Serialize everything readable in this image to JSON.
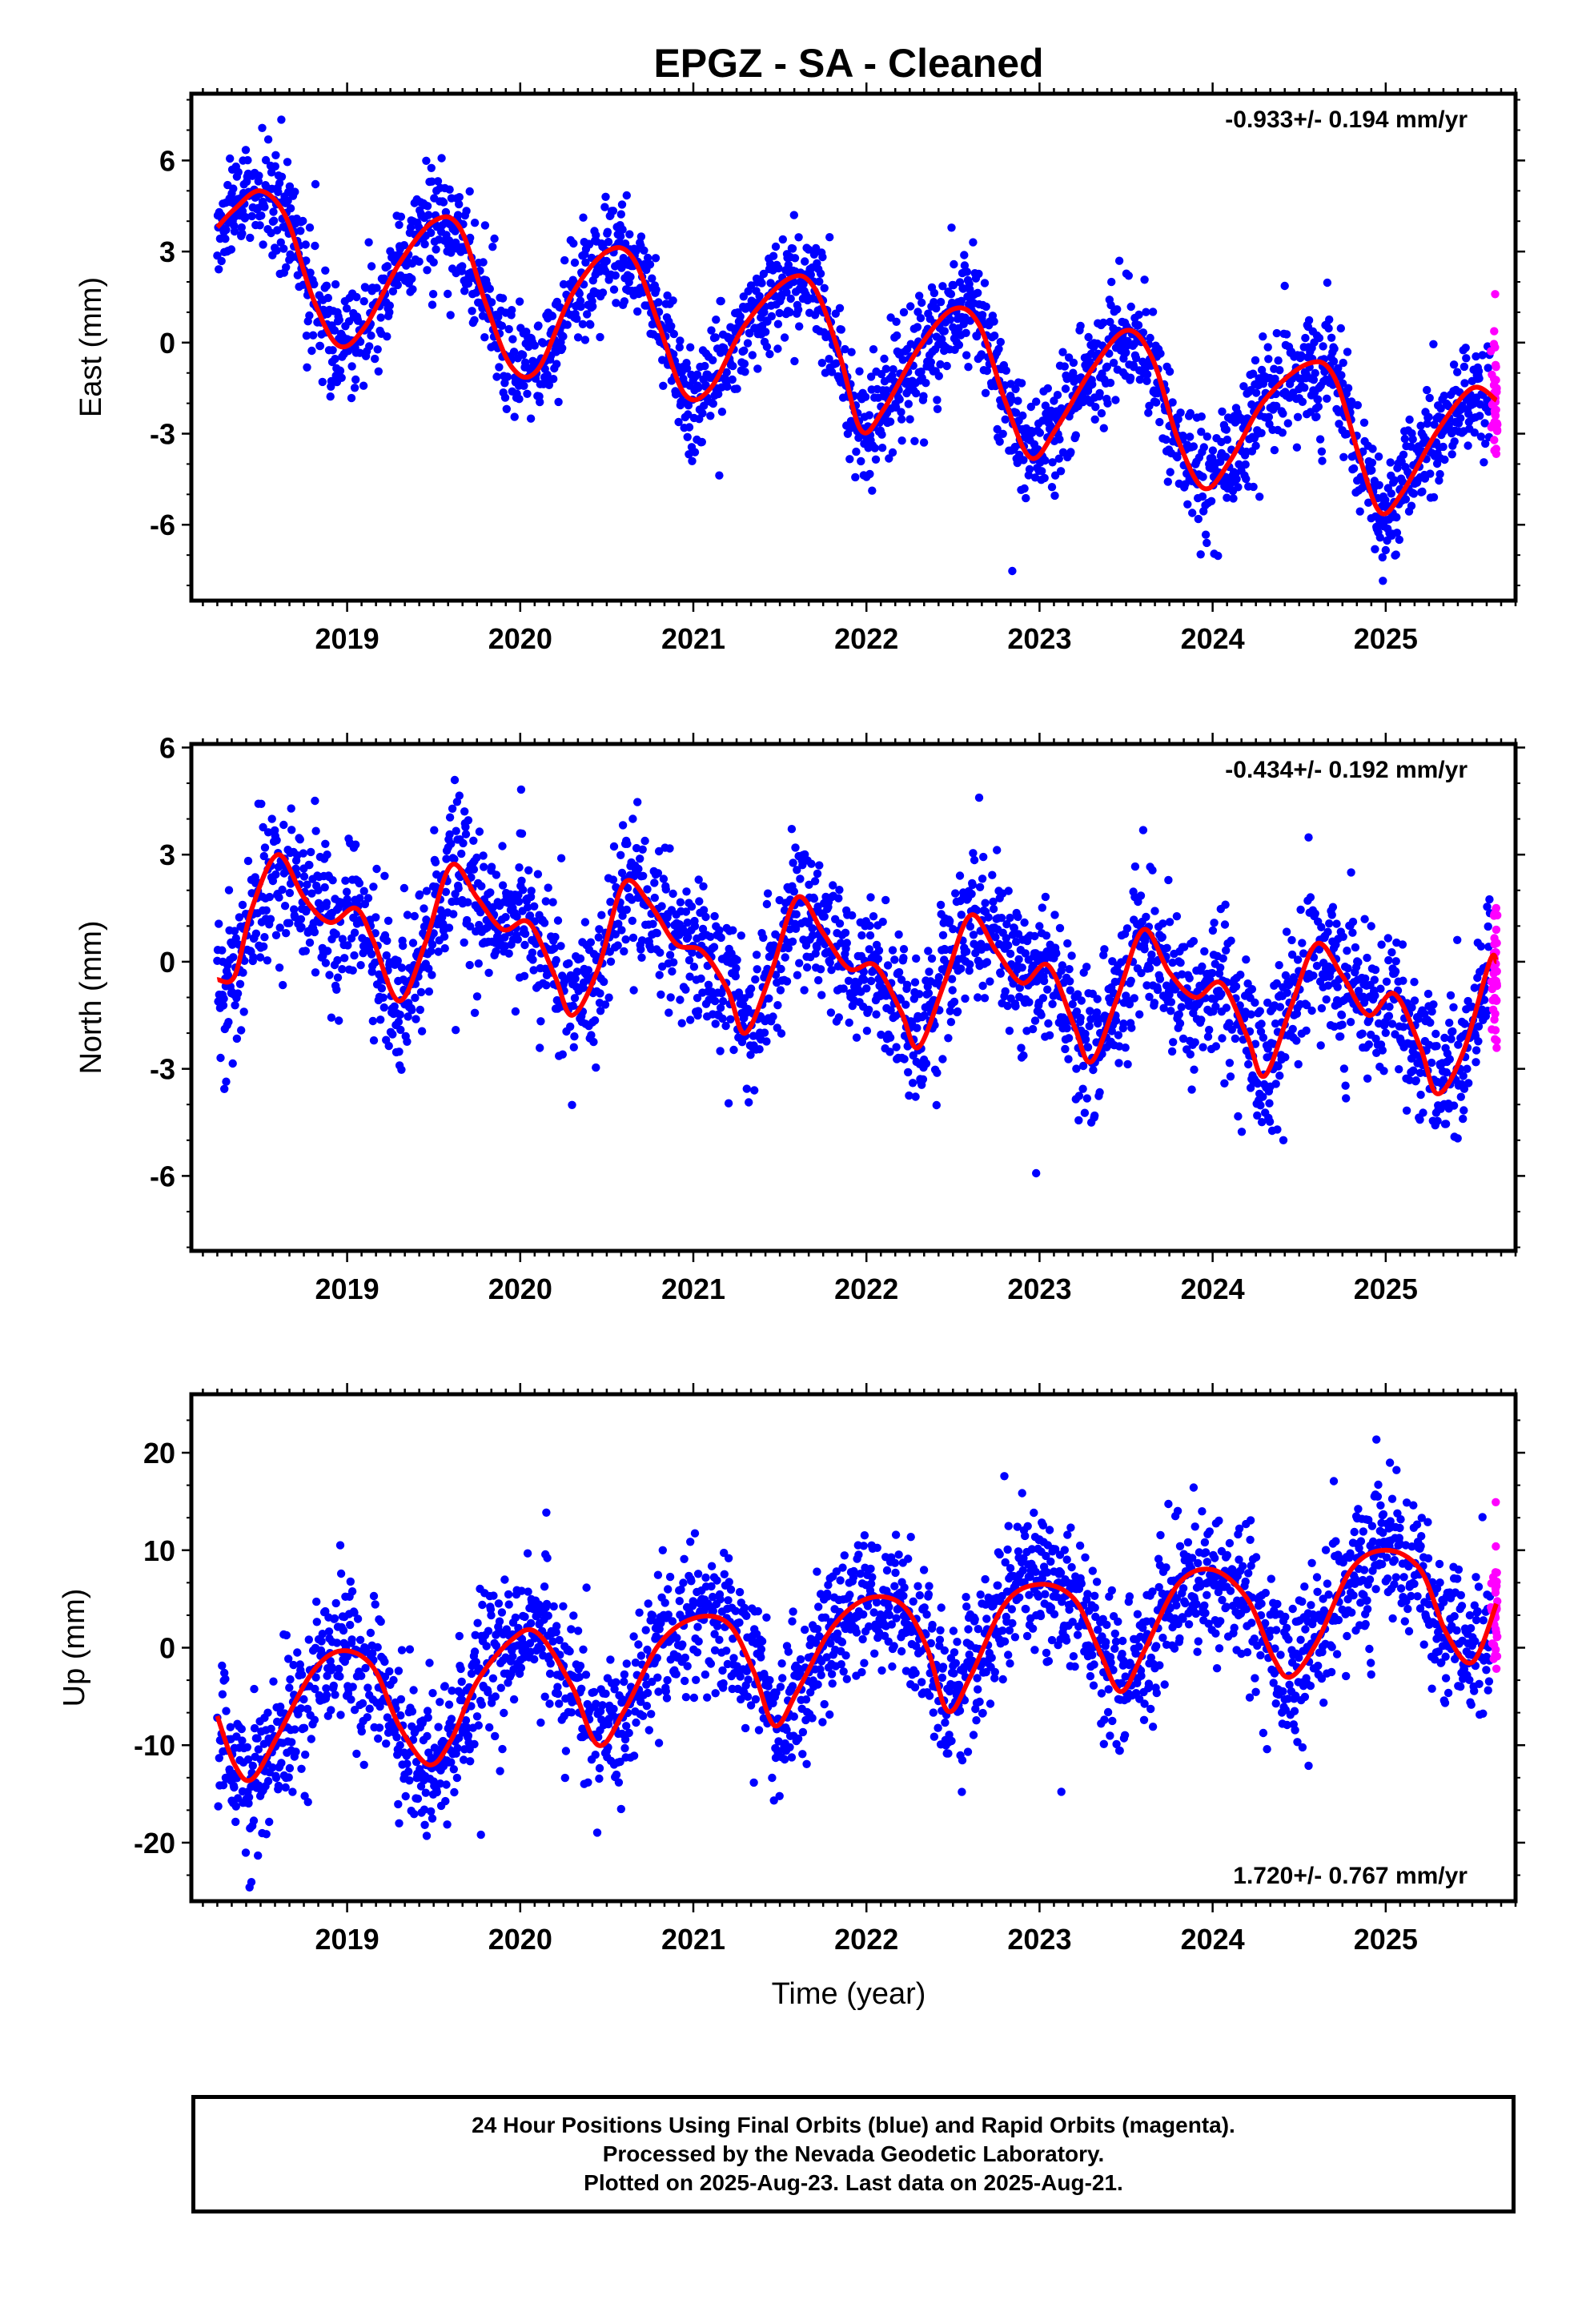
{
  "title": "EPGZ  - SA - Cleaned",
  "xlabel": "Time (year)",
  "colors": {
    "final": "#0000ff",
    "rapid": "#ff00ff",
    "model": "#ff0000",
    "axis": "#000000"
  },
  "footer": {
    "line1": "24 Hour Positions Using Final Orbits (blue) and Rapid Orbits (magenta).",
    "line2": "Processed by the Nevada Geodetic Laboratory.",
    "line3": "Plotted on 2025-Aug-23. Last data on 2025-Aug-21."
  },
  "chart_data": [
    {
      "type": "scatter",
      "component": "east",
      "ylabel": "East (mm)",
      "rate_label": "-0.933+/- 0.194 mm/yr",
      "xlim": [
        2018.1,
        2025.75
      ],
      "ylim": [
        -8.5,
        8.2
      ],
      "xticks": [
        2019,
        2020,
        2021,
        2022,
        2023,
        2024,
        2025
      ],
      "yticks": [
        6,
        3,
        0,
        -3,
        -6
      ],
      "ytick_labels": [
        "6",
        "3",
        "0",
        "-3",
        "-6"
      ],
      "x_start": 2018.25,
      "x_rapid_start": 2025.55,
      "x_end": 2025.64,
      "fit": {
        "x": [
          2018.25,
          2018.35,
          2018.5,
          2018.65,
          2018.8,
          2018.95,
          2019.1,
          2019.3,
          2019.5,
          2019.65,
          2019.8,
          2019.95,
          2020.1,
          2020.3,
          2020.5,
          2020.65,
          2020.8,
          2020.95,
          2021.1,
          2021.3,
          2021.55,
          2021.7,
          2021.85,
          2021.97,
          2022.1,
          2022.3,
          2022.5,
          2022.65,
          2022.8,
          2022.95,
          2023.1,
          2023.3,
          2023.5,
          2023.65,
          2023.8,
          2023.95,
          2024.1,
          2024.3,
          2024.55,
          2024.7,
          2024.85,
          2024.97,
          2025.1,
          2025.3,
          2025.5,
          2025.64
        ],
        "y": [
          3.8,
          4.4,
          5.0,
          4.1,
          1.5,
          -0.1,
          0.5,
          2.6,
          4.0,
          3.8,
          1.3,
          -0.8,
          -0.9,
          1.6,
          3.0,
          2.8,
          0.6,
          -1.7,
          -1.5,
          0.6,
          2.1,
          1.8,
          -0.5,
          -2.9,
          -2.2,
          -0.2,
          1.1,
          0.6,
          -1.9,
          -3.8,
          -2.8,
          -0.9,
          0.4,
          -0.5,
          -3.2,
          -4.8,
          -3.9,
          -1.9,
          -0.7,
          -1.1,
          -3.8,
          -5.6,
          -4.9,
          -2.9,
          -1.5,
          -1.9
        ]
      },
      "season": {
        "amp": 2.2,
        "phase": 0.55,
        "amp2": 0.0,
        "trend": -0.933,
        "offset": 4.3,
        "noise": 1.0
      }
    },
    {
      "type": "scatter",
      "component": "north",
      "ylabel": "North (mm)",
      "rate_label": "-0.434+/- 0.192 mm/yr",
      "xlim": [
        2018.1,
        2025.75
      ],
      "ylim": [
        -8.1,
        6.1
      ],
      "xticks": [
        2019,
        2020,
        2021,
        2022,
        2023,
        2024,
        2025
      ],
      "yticks": [
        6,
        3,
        0,
        -3,
        -6
      ],
      "ytick_labels": [
        "6",
        "3",
        "0",
        "-3",
        "-6"
      ],
      "x_start": 2018.25,
      "x_rapid_start": 2025.55,
      "x_end": 2025.64,
      "fit": {
        "x": [
          2018.25,
          2018.35,
          2018.45,
          2018.6,
          2018.75,
          2018.9,
          2019.05,
          2019.15,
          2019.3,
          2019.45,
          2019.6,
          2019.75,
          2019.9,
          2020.05,
          2020.2,
          2020.3,
          2020.45,
          2020.6,
          2020.75,
          2020.9,
          2021.05,
          2021.2,
          2021.3,
          2021.45,
          2021.6,
          2021.75,
          2021.9,
          2022.05,
          2022.2,
          2022.3,
          2022.45,
          2022.6,
          2022.75,
          2022.9,
          2023.05,
          2023.2,
          2023.3,
          2023.45,
          2023.6,
          2023.75,
          2023.9,
          2024.05,
          2024.2,
          2024.3,
          2024.45,
          2024.6,
          2024.75,
          2024.9,
          2025.05,
          2025.2,
          2025.3,
          2025.45,
          2025.6,
          2025.64
        ],
        "y": [
          -0.5,
          -0.4,
          1.5,
          3.0,
          1.8,
          1.1,
          1.5,
          0.6,
          -1.1,
          0.5,
          2.7,
          1.8,
          0.9,
          1.1,
          -0.4,
          -1.5,
          -0.2,
          2.2,
          1.6,
          0.5,
          0.3,
          -0.8,
          -2.0,
          -0.3,
          1.8,
          0.8,
          -0.2,
          -0.1,
          -1.4,
          -2.4,
          -0.6,
          1.3,
          0.3,
          -0.6,
          -0.1,
          -1.8,
          -2.8,
          -1.0,
          0.9,
          -0.3,
          -1.0,
          -0.6,
          -2.1,
          -3.2,
          -1.3,
          0.5,
          -0.4,
          -1.5,
          -0.9,
          -2.4,
          -3.7,
          -2.5,
          0.0,
          0.0
        ]
      },
      "season": {
        "amp": 1.4,
        "phase": 0.38,
        "amp2": 0.9,
        "trend": -0.434,
        "offset": 1.0,
        "noise": 1.1
      }
    },
    {
      "type": "scatter",
      "component": "up",
      "ylabel": "Up (mm)",
      "rate_label": "1.720+/- 0.767 mm/yr",
      "xlim": [
        2018.1,
        2025.75
      ],
      "ylim": [
        -26,
        26
      ],
      "xticks": [
        2019,
        2020,
        2021,
        2022,
        2023,
        2024,
        2025
      ],
      "yticks": [
        20,
        10,
        0,
        -10,
        -20
      ],
      "ytick_labels": [
        "20",
        "10",
        "0",
        "-10",
        "-20"
      ],
      "x_start": 2018.25,
      "x_rapid_start": 2025.55,
      "x_end": 2025.64,
      "fit": {
        "x": [
          2018.25,
          2018.35,
          2018.45,
          2018.6,
          2018.8,
          2018.97,
          2019.15,
          2019.3,
          2019.47,
          2019.6,
          2019.75,
          2019.95,
          2020.1,
          2020.3,
          2020.45,
          2020.6,
          2020.8,
          2021.0,
          2021.2,
          2021.35,
          2021.47,
          2021.6,
          2021.8,
          2022.0,
          2022.2,
          2022.35,
          2022.47,
          2022.6,
          2022.8,
          2023.0,
          2023.2,
          2023.35,
          2023.47,
          2023.6,
          2023.8,
          2024.0,
          2024.2,
          2024.35,
          2024.45,
          2024.6,
          2024.8,
          2025.0,
          2025.2,
          2025.35,
          2025.5,
          2025.64
        ],
        "y": [
          -7.0,
          -12.0,
          -13.5,
          -9.0,
          -2.5,
          -0.3,
          -2.0,
          -8.0,
          -12.0,
          -9.5,
          -3.5,
          0.8,
          1.5,
          -4.0,
          -10.0,
          -6.5,
          0.3,
          3.0,
          2.5,
          -2.5,
          -8.0,
          -4.5,
          2.0,
          5.0,
          4.5,
          0.0,
          -6.5,
          -3.0,
          4.5,
          6.5,
          5.0,
          -0.5,
          -4.5,
          -0.5,
          6.5,
          8.0,
          5.0,
          -1.0,
          -3.0,
          0.5,
          8.0,
          10.0,
          8.0,
          1.5,
          -1.5,
          4.5
        ]
      },
      "season": {
        "amp": 6.5,
        "phase": 0.97,
        "amp2": 0.0,
        "trend": 1.72,
        "offset": -7.0,
        "noise": 4.0
      }
    }
  ]
}
